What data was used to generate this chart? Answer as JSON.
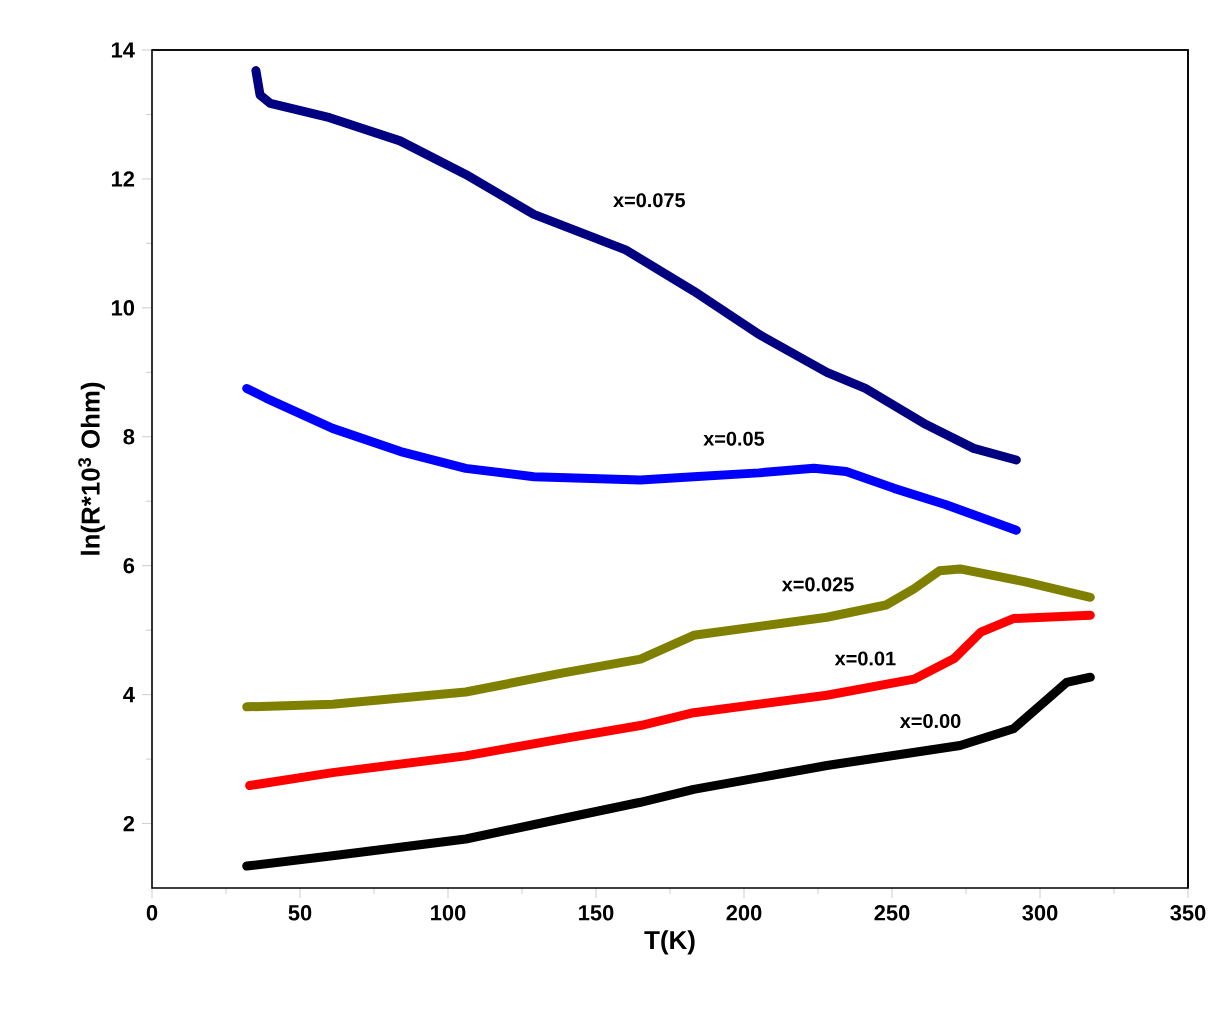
{
  "chart_data": {
    "type": "line",
    "xlabel": "T(K)",
    "ylabel": "ln(R*10$^{3}$ Ohm)",
    "xlim": [
      0,
      350
    ],
    "xticks": [
      0,
      50,
      100,
      150,
      200,
      250,
      300,
      350
    ],
    "ylim": [
      1,
      14
    ],
    "yticks": [
      2,
      4,
      6,
      8,
      10,
      12,
      14
    ],
    "grid": false,
    "line_style": "solid",
    "series": [
      {
        "name": "x=0.075",
        "color": "#000080",
        "x": [
          35.1,
          36.5,
          40,
          60,
          83.8,
          106,
          129,
          160,
          183,
          205,
          228,
          241,
          261.5,
          277.6,
          292
        ],
        "values": [
          13.68,
          13.3,
          13.17,
          12.95,
          12.59,
          12.07,
          11.45,
          10.9,
          10.26,
          9.59,
          9.0,
          8.75,
          8.19,
          7.82,
          7.64
        ]
      },
      {
        "name": "x=0.05",
        "color": "#0000ff",
        "x": [
          32,
          38.5,
          61,
          84,
          106,
          129,
          165,
          183,
          205,
          223.6,
          234.5,
          250.7,
          268,
          292
        ],
        "values": [
          8.75,
          8.6,
          8.13,
          7.77,
          7.51,
          7.38,
          7.33,
          7.38,
          7.44,
          7.51,
          7.46,
          7.2,
          6.95,
          6.55
        ]
      },
      {
        "name": "x=0.025",
        "color": "#808000",
        "x": [
          32,
          61,
          106,
          138,
          165,
          183,
          228,
          248,
          257.4,
          266,
          273,
          295,
          317
        ],
        "values": [
          3.81,
          3.85,
          4.04,
          4.33,
          4.55,
          4.92,
          5.2,
          5.39,
          5.64,
          5.92,
          5.95,
          5.75,
          5.51
        ]
      },
      {
        "name": "x=0.01",
        "color": "#ff0000",
        "x": [
          33,
          61,
          106,
          138,
          165,
          183,
          228,
          257.4,
          271,
          280,
          291,
          317
        ],
        "values": [
          2.59,
          2.79,
          3.05,
          3.31,
          3.52,
          3.72,
          3.99,
          4.24,
          4.56,
          4.97,
          5.18,
          5.23
        ]
      },
      {
        "name": "x=0.00",
        "color": "#000000",
        "x": [
          32,
          61,
          106,
          138,
          165,
          183,
          228,
          273,
          291,
          300,
          309,
          317
        ],
        "values": [
          1.34,
          1.5,
          1.76,
          2.07,
          2.33,
          2.53,
          2.9,
          3.21,
          3.47,
          3.83,
          4.19,
          4.27
        ]
      }
    ]
  }
}
